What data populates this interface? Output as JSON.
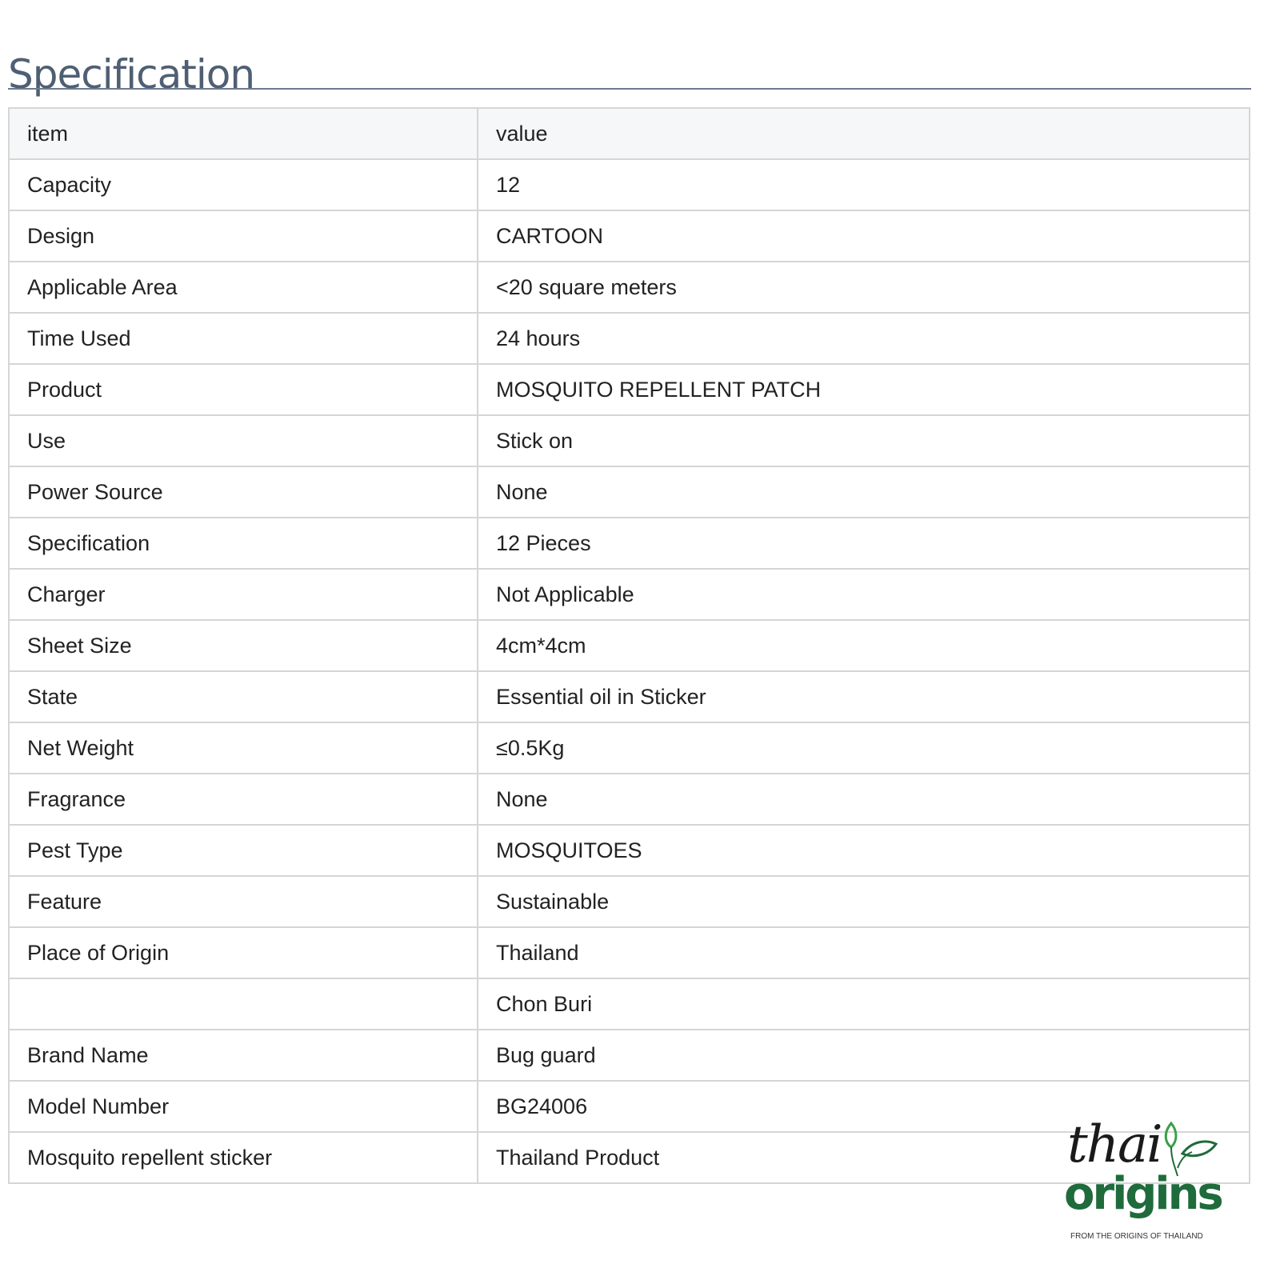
{
  "title": "Specification",
  "table": {
    "headers": [
      "item",
      "value"
    ],
    "rows": [
      [
        "Capacity",
        "12"
      ],
      [
        "Design",
        "CARTOON"
      ],
      [
        "Applicable Area",
        "<20 square meters"
      ],
      [
        "Time Used",
        "24 hours"
      ],
      [
        "Product",
        "MOSQUITO REPELLENT PATCH"
      ],
      [
        "Use",
        "Stick on"
      ],
      [
        "Power Source",
        "None"
      ],
      [
        "Specification",
        "12 Pieces"
      ],
      [
        "Charger",
        "Not Applicable"
      ],
      [
        "Sheet Size",
        "4cm*4cm"
      ],
      [
        "State",
        "Essential oil in Sticker"
      ],
      [
        "Net Weight",
        "≤0.5Kg"
      ],
      [
        "Fragrance",
        "None"
      ],
      [
        "Pest Type",
        "MOSQUITOES"
      ],
      [
        "Feature",
        "Sustainable"
      ],
      [
        "Place of Origin",
        "Thailand"
      ],
      [
        "",
        "Chon Buri"
      ],
      [
        "Brand Name",
        "Bug guard"
      ],
      [
        "Model Number",
        "BG24006"
      ],
      [
        "Mosquito repellent sticker",
        "Thailand Product"
      ]
    ]
  },
  "logo": {
    "word1": "thai",
    "word2": "origins",
    "tagline": "FROM THE ORIGINS OF THAILAND",
    "color": "#1f6b3c"
  }
}
